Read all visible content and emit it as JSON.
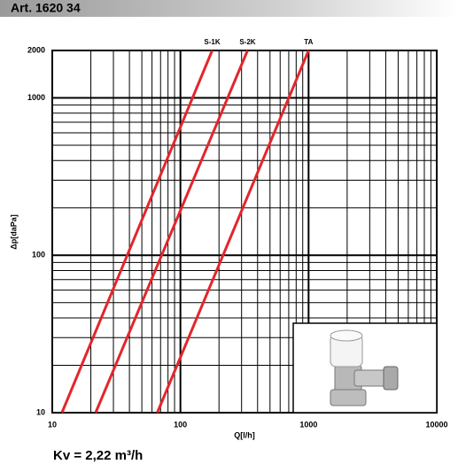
{
  "chart_data": {
    "type": "line",
    "title": "Art. 1620 34",
    "xlabel": "Q[l/h]",
    "ylabel": "Δp[daPa]",
    "footnote": "Kv = 2,22 m³/h",
    "xscale": "log",
    "yscale": "log",
    "xlim": [
      10,
      10000
    ],
    "ylim": [
      10,
      2000
    ],
    "xticks": [
      10,
      100,
      1000,
      10000
    ],
    "yticks": [
      10,
      100,
      1000,
      2000
    ],
    "xgrid": [
      20,
      30,
      40,
      50,
      60,
      70,
      80,
      90,
      200,
      300,
      400,
      500,
      600,
      700,
      800,
      900,
      2000,
      3000,
      4000,
      5000,
      6000,
      7000,
      8000,
      9000
    ],
    "ygrid": [
      20,
      30,
      40,
      50,
      60,
      70,
      80,
      90,
      200,
      300,
      400,
      500,
      600,
      700,
      800,
      900
    ],
    "series": [
      {
        "name": "S-1K",
        "color": "#e3262b",
        "x": [
          11.9,
          177
        ],
        "values": [
          10,
          2000
        ]
      },
      {
        "name": "S-2K",
        "color": "#e3262b",
        "x": [
          21.8,
          334
        ],
        "values": [
          10,
          2000
        ]
      },
      {
        "name": "TA",
        "color": "#e3262b",
        "x": [
          66,
          1000
        ],
        "values": [
          10,
          2000
        ]
      }
    ]
  }
}
